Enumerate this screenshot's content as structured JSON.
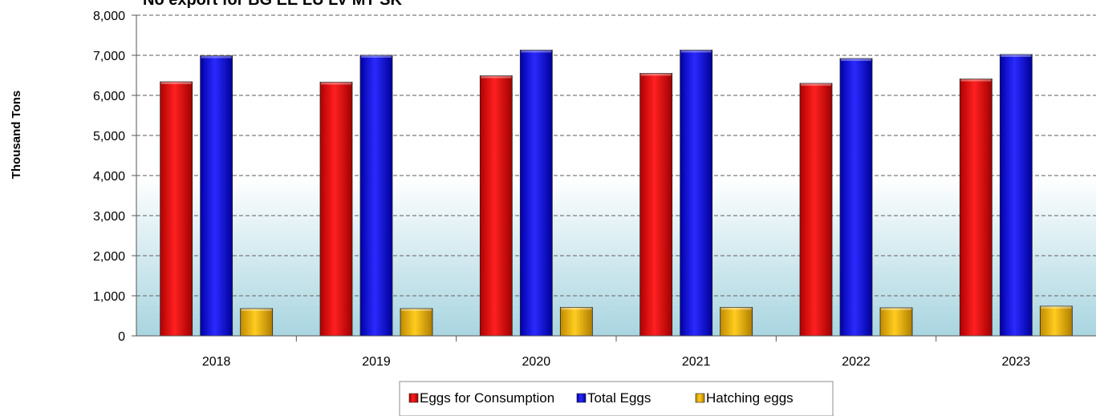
{
  "chart_data": {
    "type": "bar",
    "title": "No export for BG EE LU LV MT SK",
    "xlabel": "",
    "ylabel": "Thousand Tons",
    "categories": [
      "2018",
      "2019",
      "2020",
      "2021",
      "2022",
      "2023"
    ],
    "series": [
      {
        "name": "Eggs for Consumption",
        "color": "#ff0000",
        "values": [
          6340,
          6330,
          6490,
          6550,
          6300,
          6410
        ]
      },
      {
        "name": "Total Eggs",
        "color": "#0000ff",
        "values": [
          6990,
          7000,
          7130,
          7130,
          6920,
          7020
        ]
      },
      {
        "name": "Hatching eggs",
        "color": "#ffc000",
        "values": [
          680,
          680,
          710,
          710,
          700,
          740
        ]
      }
    ],
    "ylim": [
      0,
      8000
    ],
    "yticks": [
      "0",
      "1,000",
      "2,000",
      "3,000",
      "4,000",
      "5,000",
      "6,000",
      "7,000",
      "8,000"
    ],
    "grid": true,
    "legend_position": "bottom"
  }
}
